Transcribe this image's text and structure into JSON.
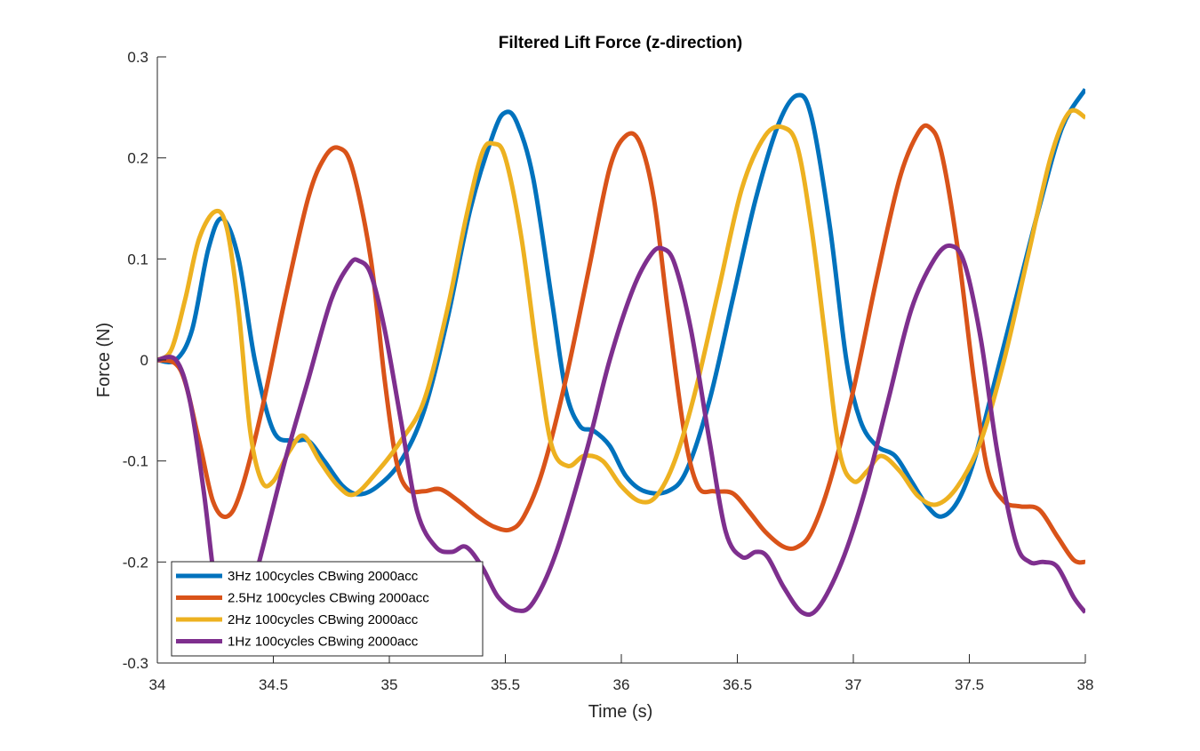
{
  "chart_data": {
    "type": "line",
    "title": "Filtered Lift Force (z-direction)",
    "xlabel": "Time (s)",
    "ylabel": "Force (N)",
    "xlim": [
      34,
      38
    ],
    "ylim": [
      -0.3,
      0.3
    ],
    "xticks": [
      34,
      34.5,
      35,
      35.5,
      36,
      36.5,
      37,
      37.5,
      38
    ],
    "xtick_labels": [
      "34",
      "34.5",
      "35",
      "35.5",
      "36",
      "36.5",
      "37",
      "37.5",
      "38"
    ],
    "yticks": [
      -0.3,
      -0.2,
      -0.1,
      0,
      0.1,
      0.2,
      0.3
    ],
    "ytick_labels": [
      "-0.3",
      "-0.2",
      "-0.1",
      "0",
      "0.1",
      "0.2",
      "0.3"
    ],
    "grid": false,
    "legend_position": "bottom-left",
    "series": [
      {
        "name": "3Hz 100cycles CBwing 2000acc",
        "color": "#0072BD",
        "points": [
          [
            34.0,
            0.0
          ],
          [
            34.08,
            0.0
          ],
          [
            34.15,
            0.03
          ],
          [
            34.22,
            0.11
          ],
          [
            34.28,
            0.14
          ],
          [
            34.35,
            0.1
          ],
          [
            34.42,
            0.0
          ],
          [
            34.5,
            -0.07
          ],
          [
            34.58,
            -0.08
          ],
          [
            34.65,
            -0.08
          ],
          [
            34.72,
            -0.1
          ],
          [
            34.8,
            -0.125
          ],
          [
            34.87,
            -0.133
          ],
          [
            34.95,
            -0.125
          ],
          [
            35.05,
            -0.1
          ],
          [
            35.15,
            -0.05
          ],
          [
            35.25,
            0.04
          ],
          [
            35.35,
            0.15
          ],
          [
            35.45,
            0.225
          ],
          [
            35.5,
            0.245
          ],
          [
            35.55,
            0.235
          ],
          [
            35.62,
            0.18
          ],
          [
            35.7,
            0.06
          ],
          [
            35.76,
            -0.03
          ],
          [
            35.82,
            -0.065
          ],
          [
            35.88,
            -0.07
          ],
          [
            35.95,
            -0.085
          ],
          [
            36.02,
            -0.115
          ],
          [
            36.1,
            -0.13
          ],
          [
            36.2,
            -0.13
          ],
          [
            36.28,
            -0.11
          ],
          [
            36.38,
            -0.04
          ],
          [
            36.48,
            0.06
          ],
          [
            36.58,
            0.16
          ],
          [
            36.68,
            0.235
          ],
          [
            36.76,
            0.262
          ],
          [
            36.82,
            0.24
          ],
          [
            36.9,
            0.13
          ],
          [
            36.97,
            0.0
          ],
          [
            37.03,
            -0.06
          ],
          [
            37.1,
            -0.085
          ],
          [
            37.18,
            -0.095
          ],
          [
            37.25,
            -0.12
          ],
          [
            37.32,
            -0.145
          ],
          [
            37.38,
            -0.155
          ],
          [
            37.45,
            -0.14
          ],
          [
            37.52,
            -0.1
          ],
          [
            37.6,
            -0.03
          ],
          [
            37.7,
            0.06
          ],
          [
            37.8,
            0.15
          ],
          [
            37.9,
            0.23
          ],
          [
            38.0,
            0.268
          ]
        ]
      },
      {
        "name": "2.5Hz 100cycles CBwing 2000acc",
        "color": "#D95319",
        "points": [
          [
            34.0,
            0.0
          ],
          [
            34.1,
            -0.01
          ],
          [
            34.18,
            -0.08
          ],
          [
            34.24,
            -0.14
          ],
          [
            34.3,
            -0.155
          ],
          [
            34.36,
            -0.13
          ],
          [
            34.45,
            -0.05
          ],
          [
            34.55,
            0.06
          ],
          [
            34.65,
            0.16
          ],
          [
            34.72,
            0.2
          ],
          [
            34.78,
            0.21
          ],
          [
            34.84,
            0.19
          ],
          [
            34.92,
            0.1
          ],
          [
            34.98,
            -0.02
          ],
          [
            35.03,
            -0.1
          ],
          [
            35.08,
            -0.128
          ],
          [
            35.15,
            -0.13
          ],
          [
            35.22,
            -0.128
          ],
          [
            35.3,
            -0.14
          ],
          [
            35.38,
            -0.155
          ],
          [
            35.45,
            -0.165
          ],
          [
            35.52,
            -0.168
          ],
          [
            35.58,
            -0.155
          ],
          [
            35.66,
            -0.11
          ],
          [
            35.76,
            -0.02
          ],
          [
            35.86,
            0.09
          ],
          [
            35.95,
            0.19
          ],
          [
            36.02,
            0.222
          ],
          [
            36.08,
            0.215
          ],
          [
            36.14,
            0.16
          ],
          [
            36.2,
            0.05
          ],
          [
            36.27,
            -0.07
          ],
          [
            36.33,
            -0.125
          ],
          [
            36.4,
            -0.13
          ],
          [
            36.48,
            -0.132
          ],
          [
            36.55,
            -0.15
          ],
          [
            36.62,
            -0.17
          ],
          [
            36.7,
            -0.185
          ],
          [
            36.76,
            -0.185
          ],
          [
            36.82,
            -0.17
          ],
          [
            36.9,
            -0.12
          ],
          [
            37.0,
            -0.03
          ],
          [
            37.1,
            0.08
          ],
          [
            37.2,
            0.18
          ],
          [
            37.28,
            0.225
          ],
          [
            37.33,
            0.23
          ],
          [
            37.38,
            0.205
          ],
          [
            37.45,
            0.11
          ],
          [
            37.52,
            -0.02
          ],
          [
            37.58,
            -0.11
          ],
          [
            37.65,
            -0.14
          ],
          [
            37.72,
            -0.145
          ],
          [
            37.8,
            -0.148
          ],
          [
            37.88,
            -0.175
          ],
          [
            37.95,
            -0.198
          ],
          [
            38.0,
            -0.2
          ]
        ]
      },
      {
        "name": "2Hz 100cycles CBwing 2000acc",
        "color": "#EDB120",
        "points": [
          [
            34.0,
            0.0
          ],
          [
            34.06,
            0.01
          ],
          [
            34.12,
            0.06
          ],
          [
            34.18,
            0.12
          ],
          [
            34.25,
            0.147
          ],
          [
            34.3,
            0.13
          ],
          [
            34.35,
            0.05
          ],
          [
            34.4,
            -0.07
          ],
          [
            34.45,
            -0.12
          ],
          [
            34.5,
            -0.12
          ],
          [
            34.57,
            -0.09
          ],
          [
            34.63,
            -0.075
          ],
          [
            34.7,
            -0.1
          ],
          [
            34.78,
            -0.125
          ],
          [
            34.85,
            -0.133
          ],
          [
            34.95,
            -0.11
          ],
          [
            35.05,
            -0.08
          ],
          [
            35.15,
            -0.04
          ],
          [
            35.25,
            0.05
          ],
          [
            35.33,
            0.14
          ],
          [
            35.4,
            0.205
          ],
          [
            35.45,
            0.214
          ],
          [
            35.5,
            0.2
          ],
          [
            35.57,
            0.12
          ],
          [
            35.64,
            0.0
          ],
          [
            35.7,
            -0.085
          ],
          [
            35.77,
            -0.105
          ],
          [
            35.84,
            -0.095
          ],
          [
            35.92,
            -0.1
          ],
          [
            36.0,
            -0.125
          ],
          [
            36.08,
            -0.14
          ],
          [
            36.15,
            -0.135
          ],
          [
            36.23,
            -0.1
          ],
          [
            36.32,
            -0.03
          ],
          [
            36.42,
            0.07
          ],
          [
            36.52,
            0.17
          ],
          [
            36.62,
            0.222
          ],
          [
            36.7,
            0.23
          ],
          [
            36.76,
            0.21
          ],
          [
            36.82,
            0.13
          ],
          [
            36.88,
            0.02
          ],
          [
            36.94,
            -0.09
          ],
          [
            37.0,
            -0.12
          ],
          [
            37.06,
            -0.11
          ],
          [
            37.12,
            -0.095
          ],
          [
            37.2,
            -0.11
          ],
          [
            37.28,
            -0.135
          ],
          [
            37.36,
            -0.143
          ],
          [
            37.45,
            -0.125
          ],
          [
            37.55,
            -0.08
          ],
          [
            37.65,
            0.0
          ],
          [
            37.75,
            0.1
          ],
          [
            37.85,
            0.2
          ],
          [
            37.93,
            0.245
          ],
          [
            38.0,
            0.24
          ]
        ]
      },
      {
        "name": "1Hz 100cycles CBwing 2000acc",
        "color": "#7E2F8E",
        "points": [
          [
            34.0,
            0.0
          ],
          [
            34.08,
            0.0
          ],
          [
            34.14,
            -0.04
          ],
          [
            34.2,
            -0.13
          ],
          [
            34.26,
            -0.24
          ],
          [
            34.32,
            -0.275
          ],
          [
            34.38,
            -0.25
          ],
          [
            34.45,
            -0.19
          ],
          [
            34.55,
            -0.1
          ],
          [
            34.65,
            -0.02
          ],
          [
            34.75,
            0.06
          ],
          [
            34.83,
            0.095
          ],
          [
            34.87,
            0.098
          ],
          [
            34.92,
            0.085
          ],
          [
            34.98,
            0.03
          ],
          [
            35.05,
            -0.06
          ],
          [
            35.12,
            -0.15
          ],
          [
            35.2,
            -0.185
          ],
          [
            35.27,
            -0.19
          ],
          [
            35.33,
            -0.185
          ],
          [
            35.4,
            -0.205
          ],
          [
            35.47,
            -0.235
          ],
          [
            35.55,
            -0.248
          ],
          [
            35.62,
            -0.24
          ],
          [
            35.72,
            -0.19
          ],
          [
            35.85,
            -0.09
          ],
          [
            35.95,
            0.0
          ],
          [
            36.05,
            0.07
          ],
          [
            36.13,
            0.105
          ],
          [
            36.18,
            0.11
          ],
          [
            36.23,
            0.095
          ],
          [
            36.3,
            0.03
          ],
          [
            36.38,
            -0.08
          ],
          [
            36.45,
            -0.17
          ],
          [
            36.52,
            -0.195
          ],
          [
            36.58,
            -0.19
          ],
          [
            36.63,
            -0.195
          ],
          [
            36.7,
            -0.225
          ],
          [
            36.78,
            -0.25
          ],
          [
            36.85,
            -0.245
          ],
          [
            36.95,
            -0.2
          ],
          [
            37.05,
            -0.13
          ],
          [
            37.15,
            -0.04
          ],
          [
            37.25,
            0.05
          ],
          [
            37.35,
            0.1
          ],
          [
            37.42,
            0.113
          ],
          [
            37.48,
            0.095
          ],
          [
            37.55,
            0.02
          ],
          [
            37.62,
            -0.09
          ],
          [
            37.7,
            -0.18
          ],
          [
            37.76,
            -0.2
          ],
          [
            37.82,
            -0.2
          ],
          [
            37.88,
            -0.205
          ],
          [
            37.95,
            -0.235
          ],
          [
            38.0,
            -0.25
          ]
        ]
      }
    ]
  }
}
